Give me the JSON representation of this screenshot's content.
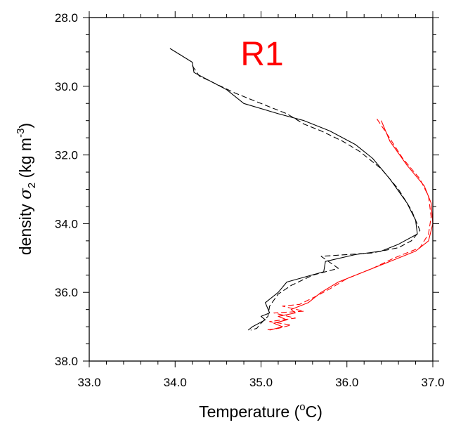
{
  "chart_data": {
    "type": "line",
    "title": "R1",
    "title_color": "#ff0000",
    "xlabel": {
      "main": "Temperature (",
      "sup": "o",
      "tail": "C)"
    },
    "ylabel": {
      "main": "density ",
      "sigma": "σ",
      "sub": "2",
      "unit_open": " (kg m",
      "sup": "-3",
      "unit_close": ")"
    },
    "xlim": [
      33.0,
      37.0
    ],
    "ylim": [
      28.0,
      38.0
    ],
    "y_inverted": true,
    "grid": false,
    "x_ticks": [
      "33.0",
      "34.0",
      "35.0",
      "36.0",
      "37.0"
    ],
    "y_ticks": [
      "28.0",
      "30.0",
      "32.0",
      "34.0",
      "36.0",
      "38.0"
    ],
    "series": [
      {
        "color": "#000000",
        "dash": "solid",
        "points": [
          [
            33.94,
            28.9
          ],
          [
            34.2,
            29.3
          ],
          [
            34.22,
            29.6
          ],
          [
            34.6,
            30.1
          ],
          [
            34.8,
            30.5
          ],
          [
            35.2,
            30.8
          ],
          [
            35.5,
            31.0
          ],
          [
            35.8,
            31.3
          ],
          [
            36.1,
            31.7
          ],
          [
            36.3,
            32.1
          ],
          [
            36.5,
            32.7
          ],
          [
            36.7,
            33.4
          ],
          [
            36.8,
            33.9
          ],
          [
            36.82,
            34.3
          ],
          [
            36.6,
            34.6
          ],
          [
            36.4,
            34.8
          ],
          [
            36.1,
            34.9
          ],
          [
            35.75,
            35.1
          ],
          [
            35.73,
            35.4
          ],
          [
            35.3,
            35.7
          ],
          [
            35.2,
            36.0
          ],
          [
            35.05,
            36.3
          ],
          [
            35.1,
            36.6
          ],
          [
            35.0,
            36.7
          ],
          [
            35.05,
            36.8
          ],
          [
            34.9,
            37.0
          ],
          [
            34.85,
            37.1
          ]
        ]
      },
      {
        "color": "#000000",
        "dash": "dashed",
        "points": [
          [
            34.2,
            29.4
          ],
          [
            34.28,
            29.7
          ],
          [
            34.7,
            30.2
          ],
          [
            35.0,
            30.5
          ],
          [
            35.3,
            30.8
          ],
          [
            35.5,
            31.1
          ],
          [
            35.7,
            31.3
          ],
          [
            35.95,
            31.6
          ],
          [
            36.15,
            31.9
          ],
          [
            36.4,
            32.4
          ],
          [
            36.6,
            33.0
          ],
          [
            36.75,
            33.6
          ],
          [
            36.85,
            34.2
          ],
          [
            36.75,
            34.5
          ],
          [
            36.6,
            34.7
          ],
          [
            36.3,
            34.85
          ],
          [
            35.7,
            34.95
          ],
          [
            35.9,
            35.3
          ],
          [
            35.6,
            35.5
          ],
          [
            35.35,
            35.8
          ],
          [
            35.2,
            36.05
          ],
          [
            35.1,
            36.4
          ],
          [
            35.08,
            36.7
          ],
          [
            35.0,
            36.9
          ],
          [
            34.95,
            37.05
          ],
          [
            34.88,
            37.1
          ]
        ]
      },
      {
        "color": "#ff0000",
        "dash": "solid",
        "points": [
          [
            36.4,
            31.0
          ],
          [
            36.5,
            31.6
          ],
          [
            36.7,
            32.3
          ],
          [
            36.9,
            32.9
          ],
          [
            36.98,
            33.4
          ],
          [
            37.0,
            34.0
          ],
          [
            36.95,
            34.5
          ],
          [
            36.8,
            34.8
          ],
          [
            36.5,
            35.1
          ],
          [
            36.2,
            35.4
          ],
          [
            35.9,
            35.7
          ],
          [
            35.7,
            36.0
          ],
          [
            35.55,
            36.3
          ],
          [
            35.35,
            36.5
          ],
          [
            35.4,
            36.6
          ],
          [
            35.2,
            36.7
          ],
          [
            35.3,
            36.8
          ],
          [
            35.15,
            36.9
          ],
          [
            35.25,
            37.0
          ],
          [
            35.1,
            37.1
          ]
        ]
      },
      {
        "color": "#ff0000",
        "dash": "dashed",
        "points": [
          [
            36.35,
            30.95
          ],
          [
            36.47,
            31.4
          ],
          [
            36.65,
            32.1
          ],
          [
            36.85,
            32.7
          ],
          [
            36.95,
            33.2
          ],
          [
            36.98,
            33.8
          ],
          [
            36.95,
            34.3
          ],
          [
            36.85,
            34.7
          ],
          [
            36.55,
            35.0
          ],
          [
            36.3,
            35.3
          ],
          [
            36.0,
            35.6
          ],
          [
            35.8,
            35.9
          ],
          [
            35.65,
            36.1
          ],
          [
            35.45,
            36.35
          ],
          [
            35.25,
            36.4
          ],
          [
            35.5,
            36.55
          ],
          [
            35.15,
            36.6
          ],
          [
            35.4,
            36.75
          ],
          [
            35.1,
            36.85
          ],
          [
            35.35,
            36.95
          ],
          [
            35.2,
            37.05
          ],
          [
            35.05,
            37.1
          ]
        ]
      }
    ]
  }
}
